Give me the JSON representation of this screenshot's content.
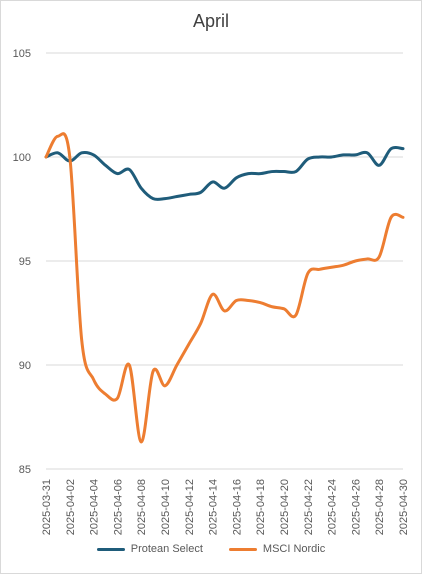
{
  "chart_data": {
    "type": "line",
    "title": "April",
    "ylim": [
      85,
      105
    ],
    "yticks": [
      85,
      90,
      95,
      100,
      105
    ],
    "grid": "horizontal",
    "legend_position": "bottom",
    "x": [
      "2025-03-31",
      "2025-04-01",
      "2025-04-02",
      "2025-04-03",
      "2025-04-04",
      "2025-04-05",
      "2025-04-06",
      "2025-04-07",
      "2025-04-08",
      "2025-04-09",
      "2025-04-10",
      "2025-04-11",
      "2025-04-12",
      "2025-04-13",
      "2025-04-14",
      "2025-04-15",
      "2025-04-16",
      "2025-04-17",
      "2025-04-18",
      "2025-04-19",
      "2025-04-20",
      "2025-04-21",
      "2025-04-22",
      "2025-04-23",
      "2025-04-24",
      "2025-04-25",
      "2025-04-26",
      "2025-04-27",
      "2025-04-28",
      "2025-04-29",
      "2025-04-30"
    ],
    "xticks": [
      "2025-03-31",
      "2025-04-02",
      "2025-04-04",
      "2025-04-06",
      "2025-04-08",
      "2025-04-10",
      "2025-04-12",
      "2025-04-14",
      "2025-04-16",
      "2025-04-18",
      "2025-04-20",
      "2025-04-22",
      "2025-04-24",
      "2025-04-26",
      "2025-04-28",
      "2025-04-30"
    ],
    "series": [
      {
        "name": "Protean Select",
        "color": "#1f5c7a",
        "values": [
          100,
          100.2,
          99.8,
          100.2,
          100.1,
          99.6,
          99.2,
          99.4,
          98.5,
          98,
          98,
          98.1,
          98.2,
          98.3,
          98.8,
          98.5,
          99,
          99.2,
          99.2,
          99.3,
          99.3,
          99.3,
          99.9,
          100,
          100,
          100.1,
          100.1,
          100.2,
          99.6,
          100.4,
          100.4
        ]
      },
      {
        "name": "MSCI Nordic",
        "color": "#ed7d31",
        "values": [
          100,
          101,
          100,
          91.2,
          89.3,
          88.6,
          88.4,
          90,
          86.3,
          89.7,
          89,
          90,
          91,
          92,
          93.4,
          92.6,
          93.1,
          93.1,
          93,
          92.8,
          92.7,
          92.4,
          94.4,
          94.6,
          94.7,
          94.8,
          95,
          95.1,
          95.2,
          97.1,
          97.1
        ]
      }
    ]
  }
}
